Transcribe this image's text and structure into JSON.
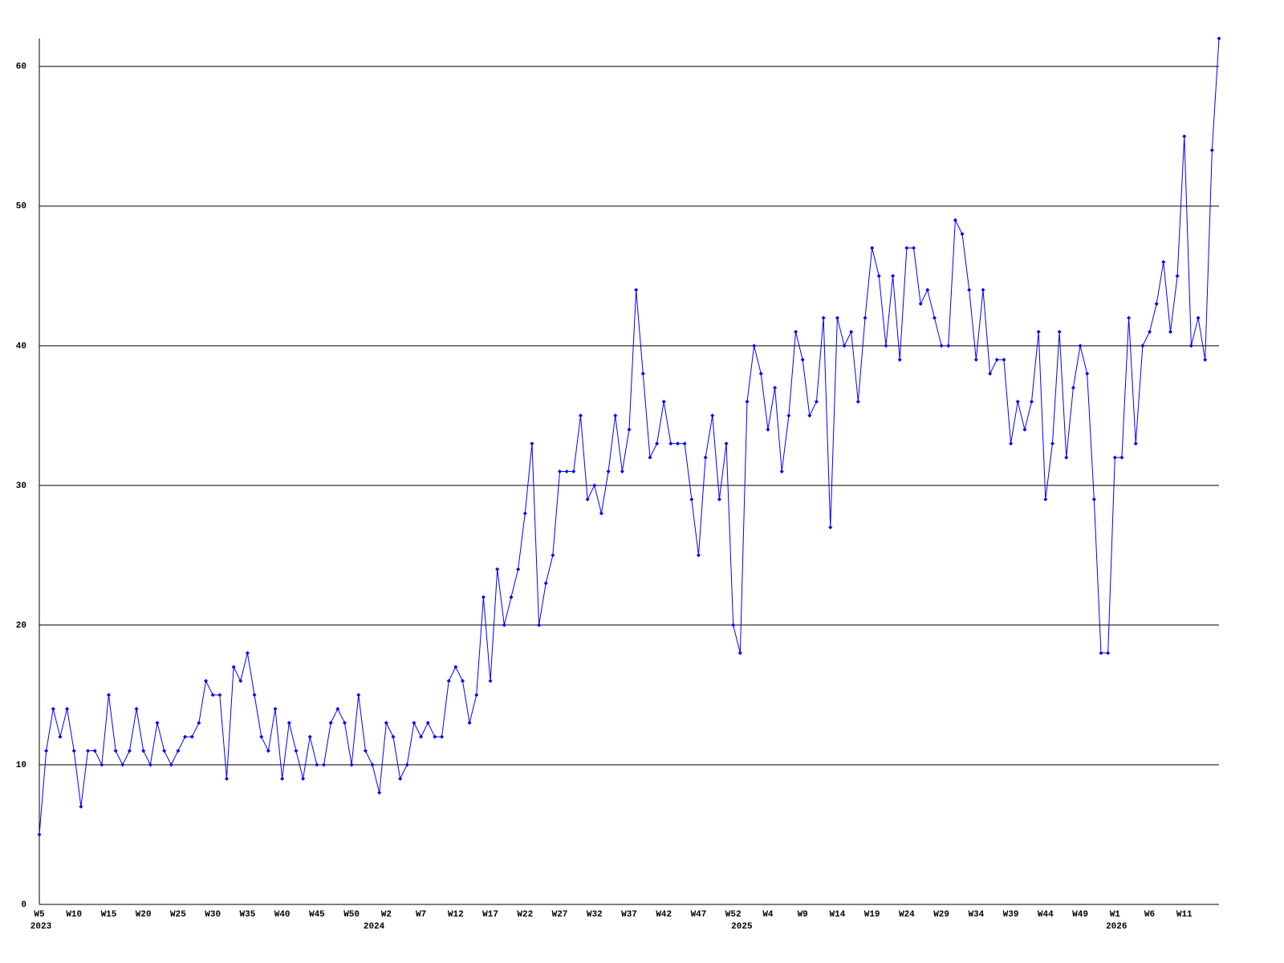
{
  "chart_data": {
    "type": "line",
    "color": "#0000ff",
    "grid": true,
    "ylim": [
      0,
      62
    ],
    "yticks": [
      0,
      10,
      20,
      30,
      40,
      50,
      60
    ],
    "categories": [
      "W5",
      null,
      null,
      null,
      null,
      "W10",
      null,
      null,
      null,
      null,
      "W15",
      null,
      null,
      null,
      null,
      "W20",
      null,
      null,
      null,
      null,
      "W25",
      null,
      null,
      null,
      null,
      "W30",
      null,
      null,
      null,
      null,
      "W35",
      null,
      null,
      null,
      null,
      "W40",
      null,
      null,
      null,
      null,
      "W45",
      null,
      null,
      null,
      null,
      "W50",
      null,
      null,
      null,
      null,
      "W2",
      null,
      null,
      null,
      null,
      "W7",
      null,
      null,
      null,
      null,
      "W12",
      null,
      null,
      null,
      null,
      "W17",
      null,
      null,
      null,
      null,
      "W22",
      null,
      null,
      null,
      null,
      "W27",
      null,
      null,
      null,
      null,
      "W32",
      null,
      null,
      null,
      null,
      "W37",
      null,
      null,
      null,
      null,
      "W42",
      null,
      null,
      null,
      null,
      "W47",
      null,
      null,
      null,
      null,
      "W52",
      null,
      null,
      null,
      null,
      "W4",
      null,
      null,
      null,
      null,
      "W9",
      null,
      null,
      null,
      null,
      "W14",
      null,
      null,
      null,
      null,
      "W19",
      null,
      null,
      null,
      null,
      "W24",
      null,
      null,
      null,
      null,
      "W29",
      null,
      null,
      null,
      null,
      "W34",
      null,
      null,
      null,
      null,
      "W39",
      null,
      null,
      null,
      null,
      "W44",
      null,
      null,
      null,
      null,
      "W49",
      null,
      null,
      null,
      null,
      "W1",
      null,
      null,
      null,
      null,
      "W6",
      null,
      null,
      null,
      null,
      "W11",
      null,
      null,
      null,
      null,
      null
    ],
    "category_years": [
      "2023",
      null,
      null,
      null,
      null,
      null,
      null,
      null,
      null,
      null,
      null,
      null,
      null,
      null,
      null,
      null,
      null,
      null,
      null,
      null,
      null,
      null,
      null,
      null,
      null,
      null,
      null,
      null,
      null,
      null,
      null,
      null,
      null,
      null,
      null,
      null,
      null,
      null,
      null,
      null,
      null,
      null,
      null,
      null,
      null,
      null,
      null,
      null,
      "2024",
      null,
      null,
      null,
      null,
      null,
      null,
      null,
      null,
      null,
      null,
      null,
      null,
      null,
      null,
      null,
      null,
      null,
      null,
      null,
      null,
      null,
      null,
      null,
      null,
      null,
      null,
      null,
      null,
      null,
      null,
      null,
      null,
      null,
      null,
      null,
      null,
      null,
      null,
      null,
      null,
      null,
      null,
      null,
      null,
      null,
      null,
      null,
      null,
      null,
      null,
      null,
      null,
      "2025",
      null,
      null,
      null,
      null,
      null,
      null,
      null,
      null,
      null,
      null,
      null,
      null,
      null,
      null,
      null,
      null,
      null,
      null,
      null,
      null,
      null,
      null,
      null,
      null,
      null,
      null,
      null,
      null,
      null,
      null,
      null,
      null,
      null,
      null,
      null,
      null,
      null,
      null,
      null,
      null,
      null,
      null,
      null,
      null,
      null,
      null,
      null,
      null,
      null,
      null,
      null,
      null,
      null,
      "2026",
      null,
      null,
      null,
      null,
      null,
      null,
      null,
      null,
      null,
      null,
      null,
      null,
      null,
      null,
      null
    ],
    "values": [
      5,
      11,
      14,
      12,
      14,
      11,
      7,
      11,
      11,
      10,
      15,
      11,
      10,
      11,
      14,
      11,
      10,
      13,
      11,
      10,
      11,
      12,
      12,
      13,
      16,
      15,
      15,
      9,
      17,
      16,
      18,
      15,
      12,
      11,
      14,
      9,
      13,
      11,
      9,
      12,
      10,
      10,
      13,
      14,
      13,
      10,
      15,
      11,
      10,
      8,
      13,
      12,
      9,
      10,
      13,
      12,
      13,
      12,
      12,
      16,
      17,
      16,
      13,
      15,
      22,
      16,
      24,
      20,
      22,
      24,
      28,
      33,
      20,
      23,
      25,
      31,
      31,
      31,
      35,
      29,
      30,
      28,
      31,
      35,
      31,
      34,
      44,
      38,
      32,
      33,
      36,
      33,
      33,
      33,
      29,
      25,
      32,
      35,
      29,
      33,
      20,
      18,
      36,
      40,
      38,
      34,
      37,
      31,
      35,
      41,
      39,
      35,
      36,
      42,
      27,
      42,
      40,
      41,
      36,
      42,
      47,
      45,
      40,
      45,
      39,
      47,
      47,
      43,
      44,
      42,
      40,
      40,
      49,
      48,
      44,
      39,
      44,
      38,
      39,
      39,
      33,
      36,
      34,
      36,
      41,
      29,
      33,
      41,
      32,
      37,
      40,
      38,
      29,
      18,
      18,
      32,
      32,
      42,
      33,
      40,
      41,
      43,
      46,
      41,
      45,
      55,
      40,
      42,
      39,
      54,
      62
    ]
  }
}
